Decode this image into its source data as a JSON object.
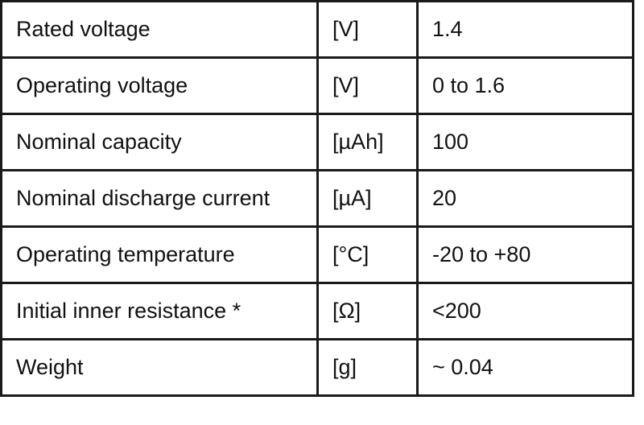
{
  "spec_table": {
    "rows": [
      {
        "parameter": "Rated voltage",
        "unit": "[V]",
        "value": "1.4"
      },
      {
        "parameter": "Operating voltage",
        "unit": "[V]",
        "value": "0 to 1.6"
      },
      {
        "parameter": "Nominal capacity",
        "unit": "[µAh]",
        "value": "100"
      },
      {
        "parameter": "Nominal discharge current",
        "unit": "[µA]",
        "value": "20"
      },
      {
        "parameter": "Operating temperature",
        "unit": "[°C]",
        "value": "-20 to +80"
      },
      {
        "parameter": "Initial inner resistance *",
        "unit": "[Ω]",
        "value": "<200"
      },
      {
        "parameter": "Weight",
        "unit": "[g]",
        "value": "~ 0.04"
      }
    ]
  }
}
